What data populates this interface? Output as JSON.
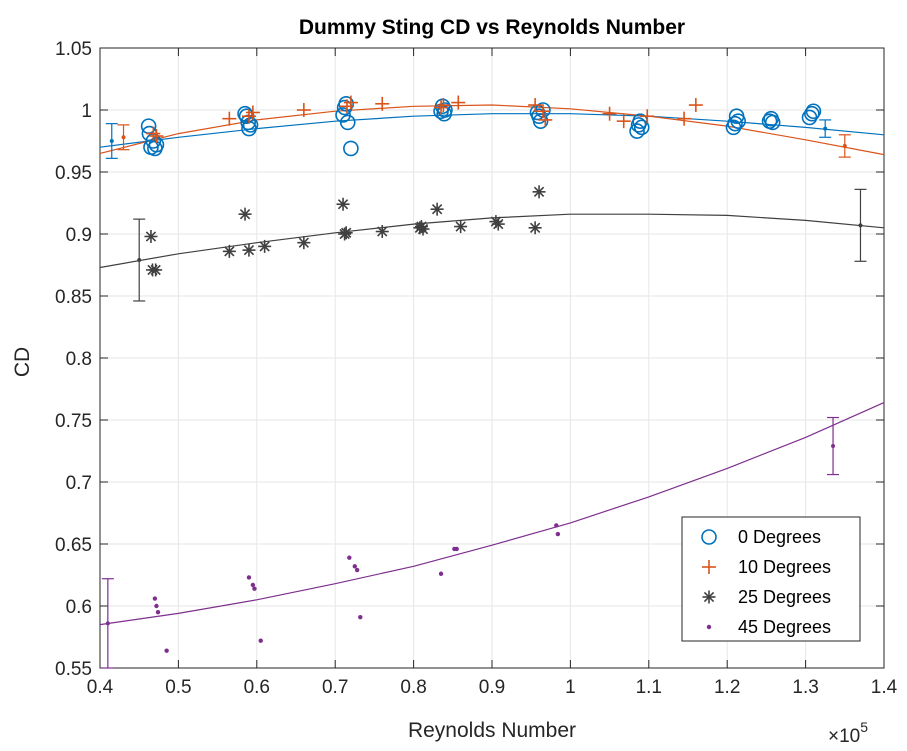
{
  "chart_data": {
    "type": "scatter",
    "title": "Dummy Sting CD vs Reynolds Number",
    "xlabel": "Reynolds Number",
    "ylabel": "CD",
    "x_multiplier_label": "×10",
    "x_multiplier_exponent": "5",
    "xlim": [
      0.4,
      1.4
    ],
    "ylim": [
      0.55,
      1.05
    ],
    "xticks": [
      "0.4",
      "0.5",
      "0.6",
      "0.7",
      "0.8",
      "0.9",
      "1",
      "1.1",
      "1.2",
      "1.3",
      "1.4"
    ],
    "yticks": [
      "0.55",
      "0.6",
      "0.65",
      "0.7",
      "0.75",
      "0.8",
      "0.85",
      "0.9",
      "0.95",
      "1",
      "1.05"
    ],
    "grid": true,
    "legend_position": "bottom-right",
    "series": [
      {
        "name": "0 Degrees",
        "marker": "circle",
        "color": "#0072BD",
        "points": [
          [
            0.462,
            0.987
          ],
          [
            0.463,
            0.981
          ],
          [
            0.465,
            0.97
          ],
          [
            0.468,
            0.975
          ],
          [
            0.47,
            0.969
          ],
          [
            0.472,
            0.972
          ],
          [
            0.585,
            0.997
          ],
          [
            0.587,
            0.995
          ],
          [
            0.589,
            0.99
          ],
          [
            0.59,
            0.985
          ],
          [
            0.592,
            0.988
          ],
          [
            0.71,
            0.996
          ],
          [
            0.712,
            1.002
          ],
          [
            0.714,
            1.005
          ],
          [
            0.716,
            0.99
          ],
          [
            0.72,
            0.969
          ],
          [
            0.835,
            0.999
          ],
          [
            0.837,
            1.003
          ],
          [
            0.839,
            0.997
          ],
          [
            0.84,
            1.0
          ],
          [
            0.958,
            0.998
          ],
          [
            0.96,
            0.995
          ],
          [
            0.962,
            0.991
          ],
          [
            0.965,
            1.0
          ],
          [
            1.085,
            0.983
          ],
          [
            1.087,
            0.988
          ],
          [
            1.089,
            0.991
          ],
          [
            1.091,
            0.986
          ],
          [
            1.208,
            0.986
          ],
          [
            1.21,
            0.989
          ],
          [
            1.212,
            0.995
          ],
          [
            1.214,
            0.991
          ],
          [
            1.254,
            0.991
          ],
          [
            1.256,
            0.993
          ],
          [
            1.258,
            0.99
          ],
          [
            1.305,
            0.994
          ],
          [
            1.308,
            0.997
          ],
          [
            1.31,
            0.999
          ]
        ],
        "fit": [
          [
            0.4,
            0.97
          ],
          [
            0.5,
            0.978
          ],
          [
            0.6,
            0.985
          ],
          [
            0.7,
            0.991
          ],
          [
            0.8,
            0.995
          ],
          [
            0.9,
            0.997
          ],
          [
            1.0,
            0.997
          ],
          [
            1.1,
            0.995
          ],
          [
            1.2,
            0.991
          ],
          [
            1.3,
            0.986
          ],
          [
            1.4,
            0.98
          ]
        ],
        "errorbars": [
          [
            0.415,
            0.975,
            0.014
          ],
          [
            1.325,
            0.985,
            0.007
          ]
        ]
      },
      {
        "name": "10 Degrees",
        "marker": "plus",
        "color": "#D95319",
        "points": [
          [
            0.468,
            0.981
          ],
          [
            0.472,
            0.979
          ],
          [
            0.565,
            0.993
          ],
          [
            0.59,
            0.995
          ],
          [
            0.595,
            0.998
          ],
          [
            0.66,
            1.0
          ],
          [
            0.715,
            1.003
          ],
          [
            0.72,
            1.006
          ],
          [
            0.76,
            1.005
          ],
          [
            0.835,
            1.002
          ],
          [
            0.838,
            1.004
          ],
          [
            0.857,
            1.006
          ],
          [
            0.955,
            1.004
          ],
          [
            0.965,
            0.999
          ],
          [
            0.968,
            0.992
          ],
          [
            1.05,
            0.997
          ],
          [
            1.068,
            0.991
          ],
          [
            1.098,
            0.995
          ],
          [
            1.145,
            0.993
          ],
          [
            1.16,
            1.004
          ]
        ],
        "fit": [
          [
            0.4,
            0.965
          ],
          [
            0.5,
            0.981
          ],
          [
            0.6,
            0.992
          ],
          [
            0.7,
            0.999
          ],
          [
            0.8,
            1.003
          ],
          [
            0.9,
            1.004
          ],
          [
            1.0,
            1.001
          ],
          [
            1.1,
            0.995
          ],
          [
            1.2,
            0.987
          ],
          [
            1.3,
            0.976
          ],
          [
            1.4,
            0.964
          ]
        ],
        "errorbars": [
          [
            0.43,
            0.978,
            0.01
          ],
          [
            1.35,
            0.971,
            0.009
          ]
        ]
      },
      {
        "name": "25 Degrees",
        "marker": "asterisk",
        "color": "#404040",
        "points": [
          [
            0.465,
            0.898
          ],
          [
            0.467,
            0.871
          ],
          [
            0.471,
            0.871
          ],
          [
            0.565,
            0.886
          ],
          [
            0.585,
            0.916
          ],
          [
            0.59,
            0.887
          ],
          [
            0.61,
            0.89
          ],
          [
            0.66,
            0.893
          ],
          [
            0.71,
            0.924
          ],
          [
            0.712,
            0.9
          ],
          [
            0.714,
            0.901
          ],
          [
            0.76,
            0.902
          ],
          [
            0.808,
            0.905
          ],
          [
            0.81,
            0.906
          ],
          [
            0.812,
            0.904
          ],
          [
            0.83,
            0.92
          ],
          [
            0.86,
            0.906
          ],
          [
            0.905,
            0.91
          ],
          [
            0.908,
            0.908
          ],
          [
            0.955,
            0.905
          ],
          [
            0.96,
            0.934
          ]
        ],
        "fit": [
          [
            0.4,
            0.873
          ],
          [
            0.5,
            0.884
          ],
          [
            0.6,
            0.893
          ],
          [
            0.7,
            0.901
          ],
          [
            0.8,
            0.908
          ],
          [
            0.9,
            0.913
          ],
          [
            1.0,
            0.916
          ],
          [
            1.1,
            0.916
          ],
          [
            1.2,
            0.915
          ],
          [
            1.3,
            0.911
          ],
          [
            1.4,
            0.905
          ]
        ],
        "errorbars": [
          [
            0.45,
            0.879,
            0.033
          ],
          [
            1.37,
            0.907,
            0.029
          ]
        ]
      },
      {
        "name": "45 Degrees",
        "marker": "dot",
        "color": "#7E2F8E",
        "points": [
          [
            0.47,
            0.606
          ],
          [
            0.472,
            0.6
          ],
          [
            0.474,
            0.595
          ],
          [
            0.485,
            0.564
          ],
          [
            0.59,
            0.623
          ],
          [
            0.595,
            0.617
          ],
          [
            0.597,
            0.614
          ],
          [
            0.605,
            0.572
          ],
          [
            0.718,
            0.639
          ],
          [
            0.725,
            0.632
          ],
          [
            0.728,
            0.629
          ],
          [
            0.732,
            0.591
          ],
          [
            0.835,
            0.626
          ],
          [
            0.852,
            0.646
          ],
          [
            0.855,
            0.646
          ],
          [
            0.982,
            0.665
          ],
          [
            0.984,
            0.658
          ]
        ],
        "fit": [
          [
            0.4,
            0.585
          ],
          [
            0.5,
            0.594
          ],
          [
            0.6,
            0.605
          ],
          [
            0.7,
            0.618
          ],
          [
            0.8,
            0.632
          ],
          [
            0.9,
            0.649
          ],
          [
            1.0,
            0.667
          ],
          [
            1.1,
            0.688
          ],
          [
            1.2,
            0.711
          ],
          [
            1.3,
            0.736
          ],
          [
            1.4,
            0.764
          ]
        ],
        "errorbars": [
          [
            0.41,
            0.586,
            0.036
          ],
          [
            1.335,
            0.729,
            0.023
          ]
        ]
      }
    ]
  }
}
